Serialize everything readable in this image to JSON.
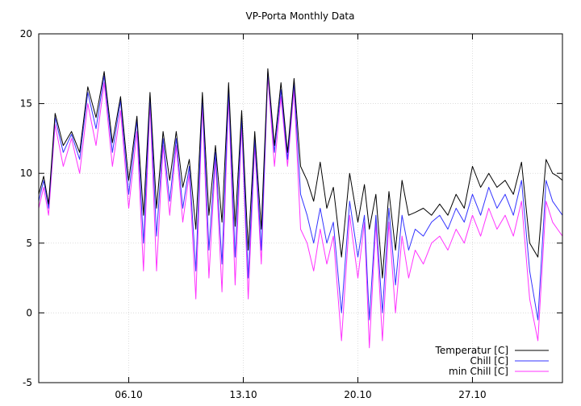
{
  "chart_data": {
    "type": "line",
    "title": "VP-Porta Monthly Data",
    "xlabel": "",
    "ylabel": "",
    "xlim": [
      0,
      32
    ],
    "ylim": [
      -5,
      20
    ],
    "grid": true,
    "legend_position": "bottom-right",
    "x_ticks": [
      {
        "value": 5.5,
        "label": "06.10"
      },
      {
        "value": 12.5,
        "label": "13.10"
      },
      {
        "value": 19.5,
        "label": "20.10"
      },
      {
        "value": 26.5,
        "label": "27.10"
      }
    ],
    "y_ticks": [
      {
        "value": -5,
        "label": "-5"
      },
      {
        "value": 0,
        "label": "0"
      },
      {
        "value": 5,
        "label": "5"
      },
      {
        "value": 10,
        "label": "10"
      },
      {
        "value": 15,
        "label": "15"
      },
      {
        "value": 20,
        "label": "20"
      }
    ],
    "series": [
      {
        "name": "Temperatur [C]",
        "color": "#000000",
        "x": [
          0,
          0.3,
          0.6,
          1.0,
          1.5,
          2.0,
          2.5,
          3.0,
          3.5,
          4.0,
          4.5,
          5.0,
          5.5,
          6.0,
          6.4,
          6.8,
          7.2,
          7.6,
          8.0,
          8.4,
          8.8,
          9.2,
          9.6,
          10.0,
          10.4,
          10.8,
          11.2,
          11.6,
          12.0,
          12.4,
          12.8,
          13.2,
          13.6,
          14.0,
          14.4,
          14.8,
          15.2,
          15.6,
          16.0,
          16.4,
          16.8,
          17.2,
          17.6,
          18.0,
          18.5,
          19.0,
          19.5,
          19.9,
          20.2,
          20.6,
          21.0,
          21.4,
          21.8,
          22.2,
          22.6,
          23.0,
          23.5,
          24.0,
          24.5,
          25.0,
          25.5,
          26.0,
          26.5,
          27.0,
          27.5,
          28.0,
          28.5,
          29.0,
          29.5,
          30.0,
          30.5,
          31.0,
          31.4,
          31.7,
          32.0
        ],
        "values": [
          8.5,
          9.8,
          7.8,
          14.3,
          12.0,
          13.0,
          11.5,
          16.2,
          14.0,
          17.3,
          12.2,
          15.5,
          9.5,
          14.1,
          7.0,
          15.8,
          7.5,
          13.0,
          9.5,
          13.0,
          9.0,
          11.0,
          6.0,
          15.8,
          7.0,
          12.0,
          6.5,
          16.5,
          6.2,
          14.5,
          4.5,
          13.0,
          6.0,
          17.5,
          12.0,
          16.5,
          11.5,
          16.8,
          10.5,
          9.5,
          8.0,
          10.8,
          7.5,
          9.0,
          4.0,
          10.0,
          6.5,
          9.2,
          6.0,
          8.5,
          2.5,
          8.7,
          4.5,
          9.5,
          7.0,
          7.2,
          7.5,
          7.0,
          7.8,
          7.0,
          8.5,
          7.5,
          10.5,
          9.0,
          10.0,
          9.0,
          9.5,
          8.5,
          10.8,
          5.0,
          4.0,
          11.0,
          10.0,
          9.8,
          9.5
        ]
      },
      {
        "name": "Chill [C]",
        "color": "#3333ff",
        "x": [
          0,
          0.3,
          0.6,
          1.0,
          1.5,
          2.0,
          2.5,
          3.0,
          3.5,
          4.0,
          4.5,
          5.0,
          5.5,
          6.0,
          6.4,
          6.8,
          7.2,
          7.6,
          8.0,
          8.4,
          8.8,
          9.2,
          9.6,
          10.0,
          10.4,
          10.8,
          11.2,
          11.6,
          12.0,
          12.4,
          12.8,
          13.2,
          13.6,
          14.0,
          14.4,
          14.8,
          15.2,
          15.6,
          16.0,
          16.4,
          16.8,
          17.2,
          17.6,
          18.0,
          18.5,
          19.0,
          19.5,
          19.9,
          20.2,
          20.6,
          21.0,
          21.4,
          21.8,
          22.2,
          22.6,
          23.0,
          23.5,
          24.0,
          24.5,
          25.0,
          25.5,
          26.0,
          26.5,
          27.0,
          27.5,
          28.0,
          28.5,
          29.0,
          29.5,
          30.0,
          30.5,
          31.0,
          31.4,
          31.7,
          32.0
        ],
        "values": [
          8.0,
          9.5,
          7.5,
          14.0,
          11.5,
          12.8,
          11.0,
          15.8,
          13.2,
          17.0,
          11.5,
          15.2,
          8.5,
          13.8,
          5.0,
          15.5,
          5.5,
          12.5,
          8.0,
          12.5,
          7.5,
          10.5,
          3.0,
          15.5,
          4.5,
          11.5,
          3.5,
          16.0,
          4.0,
          14.0,
          2.5,
          12.5,
          4.5,
          17.3,
          11.5,
          16.0,
          11.0,
          16.5,
          8.5,
          7.0,
          5.0,
          7.5,
          5.0,
          6.5,
          0.0,
          8.0,
          4.0,
          7.0,
          -0.5,
          7.0,
          0.0,
          7.5,
          2.0,
          7.0,
          4.5,
          6.0,
          5.5,
          6.5,
          7.0,
          6.0,
          7.5,
          6.5,
          8.5,
          7.0,
          9.0,
          7.5,
          8.5,
          7.0,
          9.5,
          3.0,
          -0.5,
          9.5,
          8.0,
          7.5,
          7.0
        ]
      },
      {
        "name": "min Chill [C]",
        "color": "#ff33ff",
        "x": [
          0,
          0.3,
          0.6,
          1.0,
          1.5,
          2.0,
          2.5,
          3.0,
          3.5,
          4.0,
          4.5,
          5.0,
          5.5,
          6.0,
          6.4,
          6.8,
          7.2,
          7.6,
          8.0,
          8.4,
          8.8,
          9.2,
          9.6,
          10.0,
          10.4,
          10.8,
          11.2,
          11.6,
          12.0,
          12.4,
          12.8,
          13.2,
          13.6,
          14.0,
          14.4,
          14.8,
          15.2,
          15.6,
          16.0,
          16.4,
          16.8,
          17.2,
          17.6,
          18.0,
          18.5,
          19.0,
          19.5,
          19.9,
          20.2,
          20.6,
          21.0,
          21.4,
          21.8,
          22.2,
          22.6,
          23.0,
          23.5,
          24.0,
          24.5,
          25.0,
          25.5,
          26.0,
          26.5,
          27.0,
          27.5,
          28.0,
          28.5,
          29.0,
          29.5,
          30.0,
          30.5,
          31.0,
          31.4,
          31.7,
          32.0
        ],
        "values": [
          7.5,
          9.0,
          7.0,
          13.5,
          10.5,
          12.5,
          10.0,
          15.0,
          12.0,
          16.5,
          10.5,
          14.5,
          7.5,
          13.0,
          3.0,
          15.0,
          3.0,
          12.0,
          7.0,
          12.0,
          6.5,
          10.0,
          1.0,
          15.0,
          2.5,
          11.0,
          1.5,
          15.5,
          2.0,
          13.5,
          1.0,
          12.0,
          3.5,
          17.0,
          10.5,
          15.5,
          10.5,
          16.0,
          6.0,
          5.0,
          3.0,
          6.0,
          3.5,
          5.5,
          -2.0,
          7.0,
          2.5,
          6.5,
          -2.5,
          6.5,
          -2.0,
          6.5,
          0.0,
          5.5,
          2.5,
          4.5,
          3.5,
          5.0,
          5.5,
          4.5,
          6.0,
          5.0,
          7.0,
          5.5,
          7.5,
          6.0,
          7.0,
          5.5,
          8.0,
          1.0,
          -2.0,
          8.0,
          6.5,
          6.0,
          5.5
        ]
      }
    ]
  }
}
